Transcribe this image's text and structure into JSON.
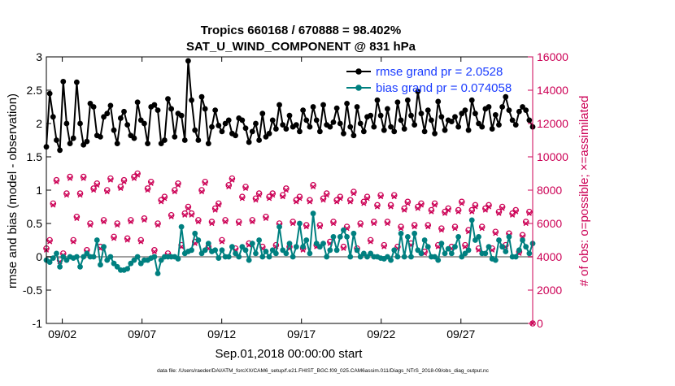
{
  "chart_data": {
    "type": "line",
    "title_line1": "Tropics 660168 / 670888 = 98.402%",
    "title_line2": "SAT_U_WIND_COMPONENT @ 831 hPa",
    "xlabel": "Sep.01,2018 00:00:00 start",
    "ylabel_left": "rmse and bias (model - observation)",
    "ylabel_right": "# of obs: o=possible; ×=assimilated",
    "footnote": "data file: /Users/raeder/DAI/ATM_forcXX/CAM6_setup/f.e21.FHIST_BGC.f09_025.CAM6assim.011/Diags_NTrS_2018-09/obs_diag_output.nc",
    "xlim": [
      0,
      30.5
    ],
    "ylim_left": [
      -1,
      3
    ],
    "ylim_right": [
      0,
      16000
    ],
    "x_ticks": [
      1,
      6,
      11,
      16,
      21,
      26
    ],
    "x_tick_labels": [
      "09/02",
      "09/07",
      "09/12",
      "09/17",
      "09/22",
      "09/27"
    ],
    "y_left_ticks": [
      -1,
      -0.5,
      0,
      0.5,
      1,
      1.5,
      2,
      2.5,
      3
    ],
    "y_left_tick_labels": [
      "-1",
      "-0.5",
      "0",
      "0.5",
      "1",
      "1.5",
      "2",
      "2.5",
      "3"
    ],
    "y_right_ticks": [
      0,
      2000,
      4000,
      6000,
      8000,
      10000,
      12000,
      14000,
      16000
    ],
    "y_right_tick_labels": [
      "0",
      "2000",
      "4000",
      "6000",
      "8000",
      "10000",
      "12000",
      "14000",
      "16000"
    ],
    "legend": [
      {
        "name": "rmse grand pr = 2.0528",
        "series": "rmse"
      },
      {
        "name": "bias grand pr = 0.074058",
        "series": "bias"
      }
    ],
    "colors": {
      "rmse": "#000000",
      "bias": "#008080",
      "nobs": "#cc0055",
      "zero_line": "#a0a0a0",
      "legend_text": "#1a3cff"
    },
    "rmse_values": [
      1.65,
      2.45,
      2.1,
      1.75,
      1.6,
      2.63,
      2.0,
      1.7,
      1.78,
      2.62,
      2.0,
      1.68,
      1.73,
      2.3,
      2.25,
      1.82,
      1.8,
      2.1,
      2.15,
      2.27,
      1.9,
      1.7,
      2.08,
      2.18,
      1.98,
      1.82,
      1.78,
      2.32,
      2.05,
      2.0,
      1.7,
      2.25,
      2.28,
      2.2,
      1.7,
      1.75,
      2.37,
      2.22,
      1.8,
      2.15,
      2.12,
      1.75,
      2.94,
      2.35,
      1.9,
      1.75,
      2.4,
      2.22,
      1.7,
      1.95,
      2.2,
      1.97,
      1.88,
      2.0,
      2.05,
      1.85,
      1.82,
      2.08,
      2.05,
      1.93,
      1.72,
      1.88,
      2.0,
      1.75,
      2.15,
      1.8,
      1.85,
      2.05,
      1.92,
      2.28,
      1.98,
      1.92,
      2.12,
      1.95,
      1.98,
      1.88,
      2.2,
      2.05,
      1.95,
      2.25,
      2.05,
      1.88,
      2.28,
      1.98,
      1.95,
      2.02,
      2.23,
      2.0,
      1.85,
      2.3,
      1.95,
      1.82,
      2.25,
      2.0,
      1.88,
      2.1,
      2.12,
      1.95,
      2.35,
      2.12,
      1.9,
      2.22,
      1.95,
      1.88,
      2.32,
      2.05,
      1.92,
      2.35,
      2.12,
      1.98,
      2.48,
      2.15,
      1.88,
      2.2,
      2.05,
      1.85,
      2.33,
      2.1,
      1.9,
      2.05,
      2.03,
      2.1,
      1.95,
      2.15,
      2.2,
      1.9,
      2.35,
      2.15,
      2.0,
      1.95,
      2.22,
      2.25,
      1.92,
      2.13,
      1.98,
      2.25,
      2.4,
      2.2,
      2.05,
      1.98,
      2.18,
      2.25,
      2.2,
      2.05,
      1.95
    ],
    "bias_values": [
      -0.05,
      -0.08,
      -0.02,
      0.05,
      -0.15,
      0.0,
      -0.05,
      0.0,
      -0.02,
      0.0,
      -0.15,
      0.0,
      0.05,
      0.0,
      0.0,
      0.25,
      -0.12,
      0.15,
      -0.05,
      0.0,
      -0.1,
      -0.15,
      -0.2,
      -0.2,
      -0.18,
      -0.1,
      -0.05,
      0.0,
      -0.1,
      -0.05,
      -0.05,
      -0.02,
      0.0,
      -0.25,
      -0.05,
      0.0,
      0.0,
      0.0,
      0.0,
      -0.03,
      0.45,
      0.05,
      0.08,
      0.1,
      0.35,
      0.25,
      0.05,
      0.1,
      0.2,
      0.08,
      0.1,
      -0.02,
      0.1,
      0.0,
      0.0,
      0.15,
      0.05,
      0.0,
      0.15,
      0.1,
      -0.05,
      0.2,
      0.05,
      0.25,
      0.0,
      0.08,
      0.0,
      0.1,
      0.05,
      0.45,
      0.1,
      0.05,
      0.2,
      0.0,
      0.15,
      0.5,
      0.15,
      0.25,
      0.05,
      0.65,
      0.2,
      0.15,
      0.2,
      0.0,
      0.1,
      0.3,
      0.1,
      0.3,
      0.4,
      0.3,
      0.0,
      0.35,
      0.1,
      0.0,
      0.05,
      0.0,
      0.05,
      0.0,
      0.0,
      -0.02,
      -0.03,
      0.0,
      -0.05,
      0.1,
      0.0,
      0.35,
      0.0,
      0.3,
      0.0,
      0.35,
      0.1,
      0.05,
      0.25,
      0.15,
      0.0,
      0.0,
      -0.05,
      0.2,
      0.05,
      0.12,
      0.05,
      0.15,
      0.3,
      0.0,
      0.05,
      0.1,
      0.55,
      0.25,
      0.3,
      0.05,
      0.05,
      0.15,
      -0.03,
      -0.05,
      0.25,
      0.15,
      0.08,
      0.3,
      0.0,
      0.0,
      0.1,
      0.25,
      0.15,
      0.05,
      0.2
    ],
    "obs_possible": [
      4500,
      5000,
      7200,
      8600,
      3800,
      4200,
      7800,
      8800,
      5000,
      6400,
      7800,
      8800,
      4400,
      6000,
      8100,
      8400,
      4600,
      6200,
      8000,
      8700,
      5200,
      6000,
      8200,
      8600,
      5100,
      6200,
      8800,
      9000,
      5000,
      6300,
      8100,
      8500,
      4400,
      6000,
      7400,
      7600,
      4200,
      6500,
      8000,
      8400,
      4700,
      6600,
      7000,
      6600,
      4900,
      6200,
      8000,
      8500,
      4600,
      6100,
      6900,
      7200,
      5000,
      6200,
      8300,
      8700,
      4500,
      6100,
      7600,
      8200,
      4800,
      6200,
      7500,
      7800,
      4600,
      6400,
      7600,
      7800,
      4700,
      6000,
      7700,
      8100,
      4600,
      6100,
      7400,
      7600,
      4500,
      5900,
      7400,
      8300,
      4700,
      5900,
      7500,
      7800,
      4900,
      6100,
      7400,
      7600,
      4600,
      5800,
      7400,
      7900,
      4500,
      6000,
      7300,
      7600,
      5000,
      6100,
      7100,
      7700,
      4700,
      6100,
      7100,
      7700,
      4600,
      5800,
      6900,
      7300,
      4800,
      5900,
      7000,
      7200,
      4300,
      5900,
      6800,
      7200,
      4700,
      5700,
      6700,
      6900,
      4600,
      5800,
      6800,
      7300,
      4700,
      5600,
      6800,
      7100,
      4500,
      5800,
      6900,
      7100,
      4500,
      5500,
      6700,
      7000,
      4700,
      5400,
      6600,
      6800,
      4300,
      5300,
      6100,
      6700,
      0
    ],
    "obs_assimilated": [
      4400,
      4900,
      7100,
      8500,
      3700,
      4100,
      7700,
      8700,
      4900,
      6300,
      7700,
      8700,
      4300,
      5900,
      8000,
      8300,
      4500,
      6100,
      7900,
      8600,
      5100,
      5900,
      8100,
      8500,
      5000,
      6100,
      8700,
      8900,
      4900,
      6200,
      8000,
      8400,
      4300,
      5900,
      7300,
      7500,
      4100,
      6400,
      7900,
      8300,
      4600,
      6500,
      6900,
      6500,
      4800,
      6100,
      7900,
      8400,
      4500,
      6000,
      6800,
      7100,
      4900,
      6100,
      8200,
      8600,
      4400,
      6000,
      7500,
      8100,
      4700,
      6100,
      7400,
      7700,
      4500,
      6300,
      7500,
      7700,
      4600,
      5900,
      7600,
      8000,
      4500,
      6000,
      7300,
      7500,
      4400,
      5800,
      7300,
      8200,
      4600,
      5800,
      7400,
      7700,
      4800,
      6000,
      7300,
      7500,
      4500,
      5700,
      7300,
      7800,
      4400,
      5900,
      7200,
      7500,
      4900,
      6000,
      7000,
      7600,
      4600,
      6000,
      7000,
      7600,
      4500,
      5700,
      6800,
      7200,
      4700,
      5800,
      6900,
      7100,
      4200,
      5800,
      6700,
      7100,
      4600,
      5600,
      6600,
      6800,
      4500,
      5700,
      6700,
      7200,
      4600,
      5500,
      6700,
      7000,
      4400,
      5700,
      6800,
      7000,
      4400,
      5400,
      6600,
      6900,
      4600,
      5300,
      6500,
      6700,
      4200,
      5200,
      6000,
      6600,
      0
    ]
  }
}
